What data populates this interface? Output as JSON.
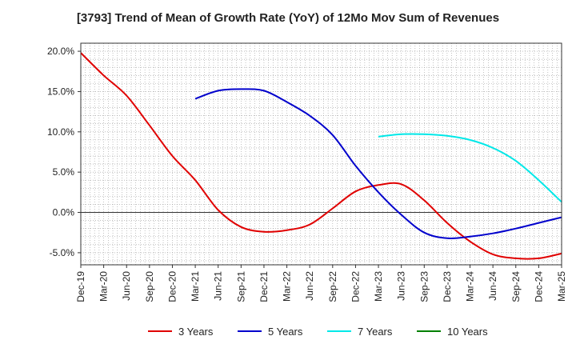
{
  "chart_data": {
    "type": "line",
    "title": "[3793]  Trend of Mean of Growth Rate (YoY) of 12Mo Mov Sum of Revenues",
    "xlabel": "",
    "ylabel": "",
    "x_tick_labels": [
      "Dec-19",
      "Mar-20",
      "Jun-20",
      "Sep-20",
      "Dec-20",
      "Mar-21",
      "Jun-21",
      "Sep-21",
      "Dec-21",
      "Mar-22",
      "Jun-22",
      "Sep-22",
      "Dec-22",
      "Mar-23",
      "Jun-23",
      "Sep-23",
      "Dec-23",
      "Mar-24",
      "Jun-24",
      "Sep-24",
      "Dec-24",
      "Mar-25"
    ],
    "y_tick_labels": [
      "20.0%",
      "15.0%",
      "10.0%",
      "5.0%",
      "0.0%",
      "-5.0%"
    ],
    "y_ticks": [
      20,
      15,
      10,
      5,
      0,
      -5
    ],
    "ylim": [
      -6.5,
      21
    ],
    "x_range": [
      0,
      21
    ],
    "grid": true,
    "legend_position": "bottom",
    "series": [
      {
        "name": "3 Years",
        "color": "#e00000",
        "points": [
          [
            0,
            19.8
          ],
          [
            1,
            17.0
          ],
          [
            2,
            14.5
          ],
          [
            3,
            10.8
          ],
          [
            4,
            7.0
          ],
          [
            5,
            4.0
          ],
          [
            6,
            0.3
          ],
          [
            7,
            -1.8
          ],
          [
            8,
            -2.4
          ],
          [
            9,
            -2.2
          ],
          [
            10,
            -1.5
          ],
          [
            11,
            0.5
          ],
          [
            12,
            2.6
          ],
          [
            13,
            3.4
          ],
          [
            14,
            3.5
          ],
          [
            15,
            1.5
          ],
          [
            16,
            -1.3
          ],
          [
            17,
            -3.6
          ],
          [
            18,
            -5.2
          ],
          [
            19,
            -5.7
          ],
          [
            20,
            -5.7
          ],
          [
            21,
            -5.1
          ]
        ]
      },
      {
        "name": "5 Years",
        "color": "#0000cc",
        "points": [
          [
            5,
            14.1
          ],
          [
            6,
            15.1
          ],
          [
            7,
            15.3
          ],
          [
            8,
            15.1
          ],
          [
            9,
            13.7
          ],
          [
            10,
            12.0
          ],
          [
            11,
            9.6
          ],
          [
            12,
            5.8
          ],
          [
            13,
            2.5
          ],
          [
            14,
            -0.3
          ],
          [
            15,
            -2.5
          ],
          [
            16,
            -3.2
          ],
          [
            17,
            -3.0
          ],
          [
            18,
            -2.6
          ],
          [
            19,
            -2.0
          ],
          [
            20,
            -1.3
          ],
          [
            21,
            -0.6
          ]
        ]
      },
      {
        "name": "7 Years",
        "color": "#00e8e8",
        "points": [
          [
            13,
            9.4
          ],
          [
            14,
            9.7
          ],
          [
            15,
            9.7
          ],
          [
            16,
            9.5
          ],
          [
            17,
            9.0
          ],
          [
            18,
            8.0
          ],
          [
            19,
            6.4
          ],
          [
            20,
            4.0
          ],
          [
            21,
            1.3
          ]
        ]
      },
      {
        "name": "10 Years",
        "color": "#008000",
        "points": []
      }
    ]
  }
}
